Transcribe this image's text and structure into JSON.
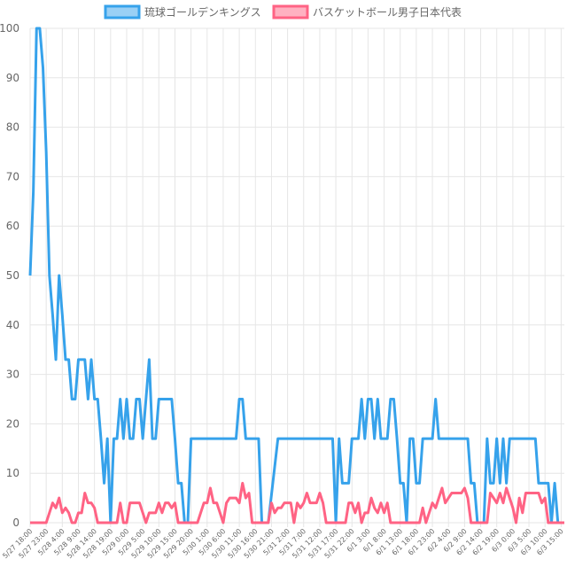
{
  "chart_data": {
    "type": "line",
    "legend": {
      "placement": "top-center"
    },
    "grid": true,
    "ylim": [
      0,
      100
    ],
    "yticks": [
      0,
      10,
      20,
      30,
      40,
      50,
      60,
      70,
      80,
      90,
      100
    ],
    "x_tick_labels": [
      "5/27 18:00",
      "5/27 23:00",
      "5/28 4:00",
      "5/28 9:00",
      "5/28 14:00",
      "5/28 19:00",
      "5/29 0:00",
      "5/29 5:00",
      "5/29 10:00",
      "5/29 15:00",
      "5/29 20:00",
      "5/30 1:00",
      "5/30 6:00",
      "5/30 11:00",
      "5/30 16:00",
      "5/30 21:00",
      "5/31 2:00",
      "5/31 7:00",
      "5/31 12:00",
      "5/31 17:00",
      "5/31 22:00",
      "6/1 3:00",
      "6/1 8:00",
      "6/1 13:00",
      "6/1 18:00",
      "6/1 23:00",
      "6/2 4:00",
      "6/2 9:00",
      "6/2 14:00",
      "6/2 19:00",
      "6/3 0:00",
      "6/3 5:00",
      "6/3 10:00",
      "6/3 15:00"
    ],
    "point_count": 167,
    "series": [
      {
        "name": "琉球ゴールデンキングス",
        "color": "#36a2eb",
        "fill": "#9ad0f5",
        "points": [
          [
            0,
            50
          ],
          [
            1,
            67
          ],
          [
            2,
            100
          ],
          [
            3,
            100
          ],
          [
            4,
            92
          ],
          [
            5,
            75
          ],
          [
            6,
            50
          ],
          [
            7,
            42
          ],
          [
            8,
            33
          ],
          [
            9,
            50
          ],
          [
            10,
            42
          ],
          [
            11,
            33
          ],
          [
            12,
            33
          ],
          [
            13,
            25
          ],
          [
            14,
            25
          ],
          [
            15,
            33
          ],
          [
            16,
            33
          ],
          [
            17,
            33
          ],
          [
            18,
            25
          ],
          [
            19,
            33
          ],
          [
            20,
            25
          ],
          [
            21,
            25
          ],
          [
            22,
            17
          ],
          [
            23,
            8
          ],
          [
            24,
            17
          ],
          [
            25,
            0
          ],
          [
            26,
            17
          ],
          [
            27,
            17
          ],
          [
            28,
            25
          ],
          [
            29,
            17
          ],
          [
            30,
            25
          ],
          [
            31,
            17
          ],
          [
            32,
            17
          ],
          [
            33,
            25
          ],
          [
            34,
            25
          ],
          [
            35,
            17
          ],
          [
            36,
            25
          ],
          [
            37,
            33
          ],
          [
            38,
            17
          ],
          [
            39,
            17
          ],
          [
            40,
            25
          ],
          [
            41,
            25
          ],
          [
            42,
            25
          ],
          [
            43,
            25
          ],
          [
            44,
            25
          ],
          [
            45,
            17
          ],
          [
            46,
            8
          ],
          [
            47,
            8
          ],
          [
            48,
            0
          ],
          [
            49,
            0
          ],
          [
            50,
            17
          ],
          [
            51,
            17
          ],
          [
            63,
            17
          ],
          [
            64,
            17
          ],
          [
            65,
            25
          ],
          [
            66,
            25
          ],
          [
            67,
            17
          ],
          [
            71,
            17
          ],
          [
            72,
            0
          ],
          [
            74,
            0
          ],
          [
            77,
            17
          ],
          [
            94,
            17
          ],
          [
            95,
            0
          ],
          [
            96,
            17
          ],
          [
            97,
            8
          ],
          [
            99,
            8
          ],
          [
            100,
            17
          ],
          [
            102,
            17
          ],
          [
            103,
            25
          ],
          [
            104,
            17
          ],
          [
            105,
            25
          ],
          [
            106,
            25
          ],
          [
            107,
            17
          ],
          [
            108,
            25
          ],
          [
            109,
            17
          ],
          [
            111,
            17
          ],
          [
            112,
            25
          ],
          [
            113,
            25
          ],
          [
            114,
            17
          ],
          [
            115,
            8
          ],
          [
            116,
            8
          ],
          [
            117,
            0
          ],
          [
            118,
            17
          ],
          [
            119,
            17
          ],
          [
            120,
            8
          ],
          [
            121,
            8
          ],
          [
            122,
            17
          ],
          [
            125,
            17
          ],
          [
            126,
            25
          ],
          [
            127,
            17
          ],
          [
            136,
            17
          ],
          [
            137,
            8
          ],
          [
            138,
            8
          ],
          [
            139,
            0
          ],
          [
            141,
            0
          ],
          [
            142,
            17
          ],
          [
            143,
            8
          ],
          [
            144,
            8
          ],
          [
            145,
            17
          ],
          [
            146,
            8
          ],
          [
            147,
            17
          ],
          [
            148,
            8
          ],
          [
            149,
            17
          ],
          [
            157,
            17
          ],
          [
            158,
            8
          ],
          [
            161,
            8
          ],
          [
            162,
            0
          ],
          [
            163,
            8
          ],
          [
            164,
            0
          ]
        ]
      },
      {
        "name": "バスケットボール男子日本代表",
        "color": "#ff6384",
        "fill": "#ffb1c1",
        "points": [
          [
            0,
            0
          ],
          [
            5,
            0
          ],
          [
            6,
            2
          ],
          [
            7,
            4
          ],
          [
            8,
            3
          ],
          [
            9,
            5
          ],
          [
            10,
            2
          ],
          [
            11,
            3
          ],
          [
            12,
            2
          ],
          [
            13,
            0
          ],
          [
            14,
            0
          ],
          [
            15,
            2
          ],
          [
            16,
            2
          ],
          [
            17,
            6
          ],
          [
            18,
            4
          ],
          [
            19,
            4
          ],
          [
            20,
            3
          ],
          [
            21,
            0
          ],
          [
            25,
            0
          ],
          [
            26,
            0
          ],
          [
            27,
            0
          ],
          [
            28,
            4
          ],
          [
            29,
            0
          ],
          [
            30,
            0
          ],
          [
            31,
            4
          ],
          [
            34,
            4
          ],
          [
            35,
            2
          ],
          [
            36,
            0
          ],
          [
            37,
            2
          ],
          [
            39,
            2
          ],
          [
            40,
            4
          ],
          [
            41,
            2
          ],
          [
            42,
            4
          ],
          [
            43,
            4
          ],
          [
            44,
            3
          ],
          [
            45,
            4
          ],
          [
            46,
            0
          ],
          [
            49,
            0
          ],
          [
            50,
            0
          ],
          [
            51,
            0
          ],
          [
            52,
            0
          ],
          [
            53,
            2
          ],
          [
            54,
            4
          ],
          [
            55,
            4
          ],
          [
            56,
            7
          ],
          [
            57,
            4
          ],
          [
            58,
            4
          ],
          [
            59,
            2
          ],
          [
            60,
            0
          ],
          [
            61,
            4
          ],
          [
            62,
            5
          ],
          [
            63,
            5
          ],
          [
            64,
            5
          ],
          [
            65,
            4
          ],
          [
            66,
            8
          ],
          [
            67,
            5
          ],
          [
            68,
            6
          ],
          [
            69,
            0
          ],
          [
            74,
            0
          ],
          [
            75,
            4
          ],
          [
            76,
            2
          ],
          [
            77,
            3
          ],
          [
            78,
            3
          ],
          [
            79,
            4
          ],
          [
            80,
            4
          ],
          [
            81,
            4
          ],
          [
            82,
            0
          ],
          [
            83,
            4
          ],
          [
            84,
            3
          ],
          [
            85,
            4
          ],
          [
            86,
            6
          ],
          [
            87,
            4
          ],
          [
            88,
            4
          ],
          [
            89,
            4
          ],
          [
            90,
            6
          ],
          [
            91,
            4
          ],
          [
            92,
            0
          ],
          [
            97,
            0
          ],
          [
            98,
            0
          ],
          [
            99,
            4
          ],
          [
            100,
            4
          ],
          [
            101,
            2
          ],
          [
            102,
            4
          ],
          [
            103,
            0
          ],
          [
            104,
            2
          ],
          [
            105,
            2
          ],
          [
            106,
            5
          ],
          [
            107,
            3
          ],
          [
            108,
            2
          ],
          [
            109,
            4
          ],
          [
            110,
            2
          ],
          [
            111,
            4
          ],
          [
            112,
            0
          ],
          [
            121,
            0
          ],
          [
            122,
            3
          ],
          [
            123,
            0
          ],
          [
            124,
            2
          ],
          [
            125,
            4
          ],
          [
            126,
            3
          ],
          [
            127,
            5
          ],
          [
            128,
            7
          ],
          [
            129,
            4
          ],
          [
            130,
            5
          ],
          [
            131,
            6
          ],
          [
            132,
            6
          ],
          [
            133,
            6
          ],
          [
            134,
            6
          ],
          [
            135,
            7
          ],
          [
            136,
            5
          ],
          [
            137,
            0
          ],
          [
            140,
            0
          ],
          [
            141,
            0
          ],
          [
            142,
            0
          ],
          [
            143,
            6
          ],
          [
            144,
            5
          ],
          [
            145,
            4
          ],
          [
            146,
            6
          ],
          [
            147,
            4
          ],
          [
            148,
            7
          ],
          [
            149,
            5
          ],
          [
            150,
            3
          ],
          [
            151,
            0
          ],
          [
            152,
            5
          ],
          [
            153,
            2
          ],
          [
            154,
            6
          ],
          [
            155,
            6
          ],
          [
            156,
            6
          ],
          [
            157,
            6
          ],
          [
            158,
            6
          ],
          [
            159,
            4
          ],
          [
            160,
            5
          ],
          [
            161,
            0
          ],
          [
            164,
            0
          ]
        ]
      }
    ]
  }
}
